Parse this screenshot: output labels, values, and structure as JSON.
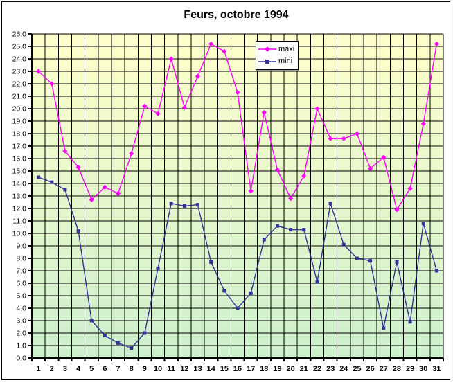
{
  "chart_data": {
    "type": "line",
    "title": "Feurs, octobre 1994",
    "xlabel": "",
    "ylabel": "",
    "ylim": [
      0,
      26
    ],
    "y_step": 1,
    "grid": true,
    "legend_position": "top-center",
    "plot_bg_gradient_top": "#FFFFCC",
    "plot_bg_gradient_bottom": "#CCEFCC",
    "grid_color": "#000000",
    "axis_color": "#000000",
    "categories": [
      "1",
      "2",
      "3",
      "4",
      "5",
      "6",
      "7",
      "8",
      "9",
      "10",
      "11",
      "12",
      "13",
      "14",
      "15",
      "16",
      "17",
      "18",
      "19",
      "20",
      "21",
      "22",
      "23",
      "24",
      "25",
      "26",
      "27",
      "28",
      "29",
      "30",
      "31"
    ],
    "y_tick_labels": [
      "0,0",
      "1,0",
      "2,0",
      "3,0",
      "4,0",
      "5,0",
      "6,0",
      "7,0",
      "8,0",
      "9,0",
      "10,0",
      "11,0",
      "12,0",
      "13,0",
      "14,0",
      "15,0",
      "16,0",
      "17,0",
      "18,0",
      "19,0",
      "20,0",
      "21,0",
      "22,0",
      "23,0",
      "24,0",
      "25,0",
      "26,0"
    ],
    "series": [
      {
        "name": "maxi",
        "color": "#FF00FF",
        "marker": "diamond",
        "values": [
          23.0,
          22.0,
          16.6,
          15.3,
          12.7,
          13.7,
          13.2,
          16.4,
          20.2,
          19.6,
          24.0,
          20.1,
          22.6,
          25.2,
          24.6,
          21.3,
          13.4,
          19.7,
          15.1,
          12.8,
          14.6,
          20.0,
          17.6,
          17.6,
          18.0,
          15.2,
          16.1,
          11.9,
          13.6,
          18.8,
          25.2
        ]
      },
      {
        "name": "mini",
        "color": "#333399",
        "marker": "square",
        "values": [
          14.5,
          14.1,
          13.5,
          10.2,
          3.0,
          1.8,
          1.2,
          0.8,
          2.0,
          7.2,
          12.4,
          12.2,
          12.3,
          7.7,
          5.4,
          4.0,
          5.2,
          9.5,
          10.6,
          10.3,
          10.3,
          6.1,
          12.4,
          9.1,
          8.0,
          7.8,
          2.4,
          7.7,
          2.9,
          10.8,
          7.0
        ]
      }
    ]
  }
}
